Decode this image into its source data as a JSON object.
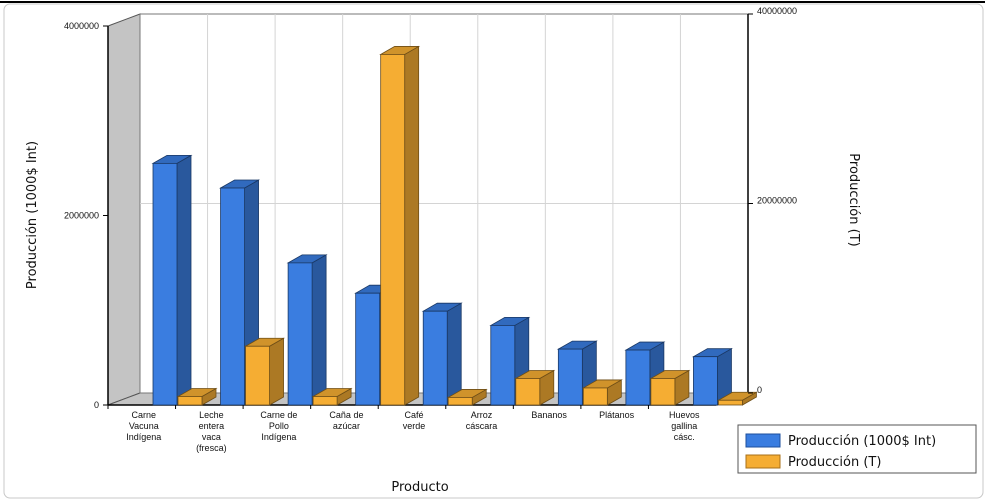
{
  "chart_data": {
    "type": "bar",
    "categories": [
      [
        "Carne",
        "Vacuna",
        "Indígena"
      ],
      [
        "Leche",
        "entera",
        "vaca",
        "(fresca)"
      ],
      [
        "Carne de",
        "Pollo",
        "Indígena"
      ],
      [
        "Caña de",
        "azúcar"
      ],
      [
        "Café",
        "verde"
      ],
      [
        "Arroz",
        "cáscara"
      ],
      [
        "Bananos"
      ],
      [
        "Plátanos"
      ],
      [
        "Huevos",
        "gallina",
        "cásc."
      ]
    ],
    "series": [
      {
        "name": "Producción (1000$ Int)",
        "axis": "left",
        "color": "#3a7de0",
        "values": [
          2550000,
          2290000,
          1500000,
          1180000,
          990000,
          840000,
          590000,
          580000,
          510000
        ]
      },
      {
        "name": "Producción (T)",
        "axis": "right",
        "color": "#f5ad33",
        "values": [
          900000,
          6200000,
          900000,
          37000000,
          800000,
          2800000,
          1800000,
          2800000,
          500000
        ]
      }
    ],
    "xlabel": "Producto",
    "ylabel": "Producción (1000$ Int)",
    "ylabel_right": "Producción (T)",
    "ylim": [
      0,
      4000000
    ],
    "ylim_right": [
      0,
      40000000
    ],
    "yticks": [
      "0",
      "2000000",
      "4000000"
    ],
    "yticks_right": [
      "0",
      "20000000",
      "40000000"
    ],
    "grid": true,
    "legend": "bottom-right"
  }
}
